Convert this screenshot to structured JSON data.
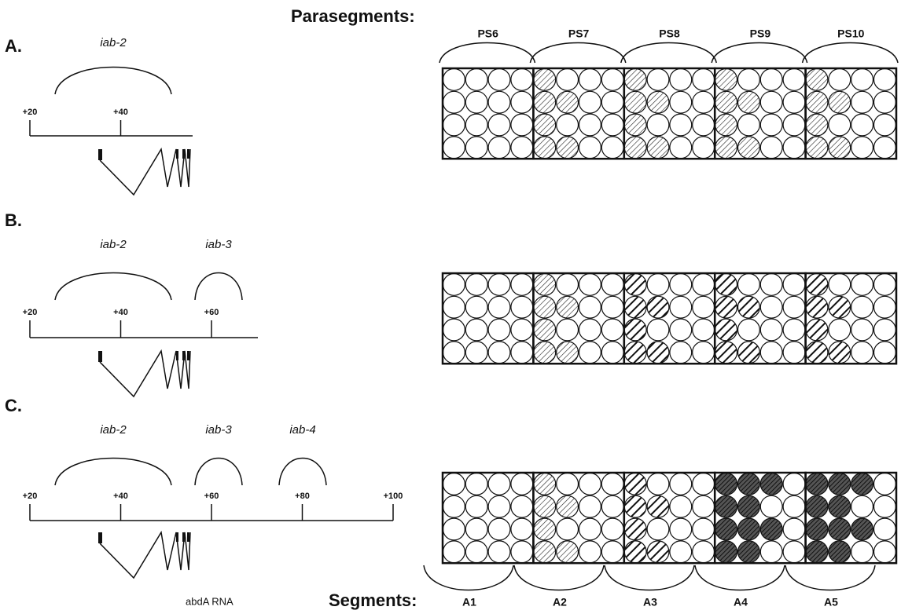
{
  "parasegments_label": "Parasegments:",
  "parasegments": [
    "PS6",
    "PS7",
    "PS8",
    "PS9",
    "PS10"
  ],
  "segments_label": "Segments:",
  "segments": [
    "A1",
    "A2",
    "A3",
    "A4",
    "A5"
  ],
  "panels": [
    {
      "label": "A.",
      "regions": [
        "iab-2"
      ],
      "ticks": [
        "+20",
        "+40"
      ]
    },
    {
      "label": "B.",
      "regions": [
        "iab-2",
        "iab-3"
      ],
      "ticks": [
        "+20",
        "+40",
        "+60"
      ]
    },
    {
      "label": "C.",
      "regions": [
        "iab-2",
        "iab-3",
        "iab-4"
      ],
      "ticks": [
        "+20",
        "+40",
        "+60",
        "+80",
        "+100"
      ],
      "rna_label": "abdA RNA"
    }
  ]
}
